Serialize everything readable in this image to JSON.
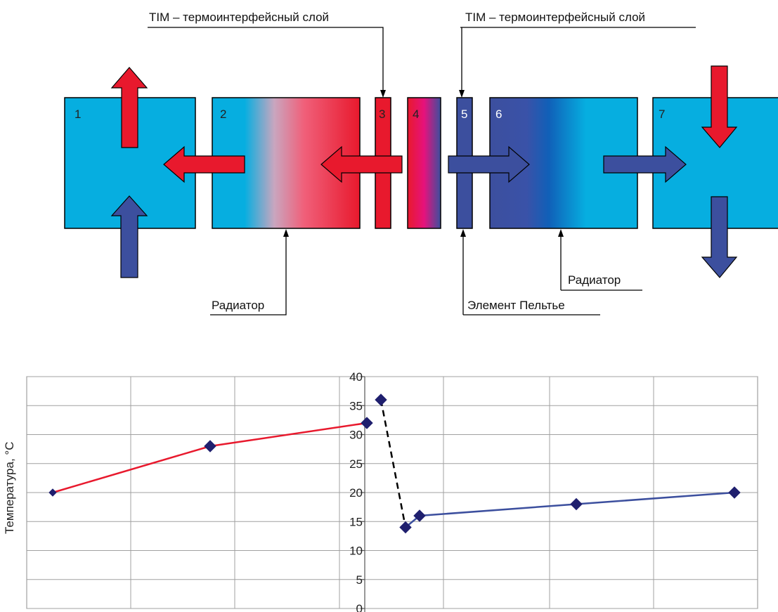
{
  "diagram": {
    "labels": {
      "tim_left": "TIM – термоинтерфейсный слой",
      "tim_right": "TIM – термоинтерфейсный слой",
      "radiator_left": "Радиатор",
      "radiator_right": "Радиатор",
      "peltier": "Элемент Пельтье"
    },
    "blocks": [
      {
        "number": "1"
      },
      {
        "number": "2"
      },
      {
        "number": "3"
      },
      {
        "number": "4"
      },
      {
        "number": "5"
      },
      {
        "number": "6"
      },
      {
        "number": "7"
      }
    ],
    "colors": {
      "cyan": "#06aee0",
      "red": "#e8192d",
      "blue": "#3c4f9e",
      "magenta": "#e6127c"
    }
  },
  "chart_data": {
    "type": "line",
    "ylabel": "Температура, °C",
    "ylim": [
      0,
      40
    ],
    "y_ticks": [
      "0",
      "5",
      "10",
      "15",
      "20",
      "25",
      "30",
      "35",
      "40"
    ],
    "grid": true,
    "series": [
      {
        "color": "#e8192d",
        "x": [
          1,
          2,
          3
        ],
        "values": [
          20,
          28,
          32
        ]
      },
      {
        "color": "#000000",
        "style": "dashed",
        "x": [
          3.6,
          4.2
        ],
        "values": [
          36,
          14
        ]
      },
      {
        "color": "#3c4f9e",
        "x": [
          4.2,
          5,
          6,
          7
        ],
        "values": [
          14,
          16,
          18,
          20
        ]
      }
    ],
    "markers": [
      {
        "x": 1,
        "value": 20
      },
      {
        "x": 2,
        "value": 28
      },
      {
        "x": 3,
        "value": 32
      },
      {
        "x": 3.6,
        "value": 36
      },
      {
        "x": 4.2,
        "value": 14
      },
      {
        "x": 5,
        "value": 16
      },
      {
        "x": 6,
        "value": 18
      },
      {
        "x": 7,
        "value": 20
      }
    ]
  }
}
